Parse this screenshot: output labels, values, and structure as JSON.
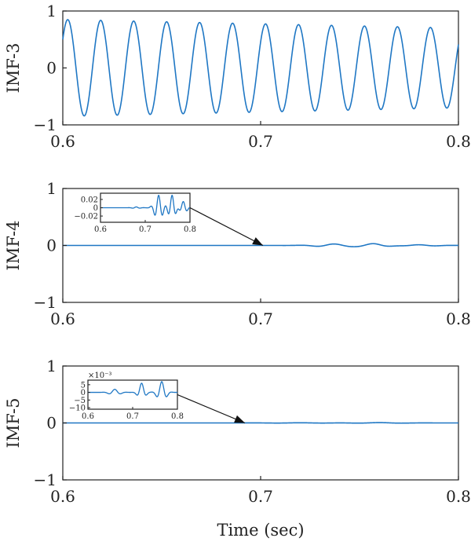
{
  "chart_data": [
    {
      "type": "line",
      "ylabel": "IMF-3",
      "xlim": [
        0.6,
        0.8
      ],
      "ylim": [
        -1,
        1
      ],
      "xticks": [
        "0.6",
        "0.7",
        "0.8"
      ],
      "yticks": [
        "−1",
        "0",
        "1"
      ],
      "series": [
        {
          "type": "oscillation",
          "color": "#1f77c4",
          "cycles": 12,
          "phase_cycles": 0.1,
          "amplitude_start": 0.85,
          "amplitude_end": 0.7,
          "x_start": 0.6,
          "x_end": 0.8
        }
      ]
    },
    {
      "type": "line",
      "ylabel": "IMF-4",
      "xlim": [
        0.6,
        0.8
      ],
      "ylim": [
        -1,
        1
      ],
      "xticks": [
        "0.6",
        "0.7",
        "0.8"
      ],
      "yticks": [
        "−1",
        "0",
        "1"
      ],
      "series": [
        {
          "type": "wavelets",
          "color": "#1f77c4",
          "x_start": 0.6,
          "x_end": 0.8,
          "bursts": [
            {
              "center": 0.737,
              "amp": 0.025,
              "width": 0.012,
              "freq": 55
            },
            {
              "center": 0.757,
              "amp": 0.03,
              "width": 0.01,
              "freq": 55
            },
            {
              "center": 0.78,
              "amp": 0.012,
              "width": 0.012,
              "freq": 55
            }
          ]
        }
      ],
      "inset": {
        "xlim": [
          0.6,
          0.8
        ],
        "ylim": [
          -0.035,
          0.035
        ],
        "xticks": [
          "0.6",
          "0.7",
          "0.8"
        ],
        "yticks": [
          "0.02",
          "0",
          "−0.02"
        ],
        "ytick_values": [
          0.02,
          0,
          -0.02
        ],
        "exponent_label": "",
        "bursts": [
          {
            "center": 0.68,
            "amp": 0.002,
            "width": 0.01,
            "freq": 55
          },
          {
            "center": 0.73,
            "amp": 0.03,
            "width": 0.012,
            "freq": 55
          },
          {
            "center": 0.76,
            "amp": 0.03,
            "width": 0.01,
            "freq": 55
          },
          {
            "center": 0.785,
            "amp": 0.015,
            "width": 0.01,
            "freq": 55
          }
        ]
      }
    },
    {
      "type": "line",
      "ylabel": "IMF-5",
      "xlabel": "Time (sec)",
      "xlim": [
        0.6,
        0.8
      ],
      "ylim": [
        -1,
        1
      ],
      "xticks": [
        "0.6",
        "0.7",
        "0.8"
      ],
      "yticks": [
        "−1",
        "0",
        "1"
      ],
      "series": [
        {
          "type": "wavelets",
          "color": "#1f77c4",
          "x_start": 0.6,
          "x_end": 0.8,
          "bursts": [
            {
              "center": 0.72,
              "amp": 0.003,
              "width": 0.02,
              "freq": 40
            },
            {
              "center": 0.76,
              "amp": 0.006,
              "width": 0.015,
              "freq": 40
            }
          ]
        }
      ],
      "inset": {
        "xlim": [
          0.6,
          0.8
        ],
        "ylim": [
          -11,
          8
        ],
        "xticks": [
          "0.6",
          "0.7",
          "0.8"
        ],
        "yticks": [
          "5",
          "0",
          "−5",
          "−10"
        ],
        "ytick_values": [
          5,
          0,
          -5,
          -10
        ],
        "exponent_label": "×10⁻³",
        "bursts": [
          {
            "center": 0.66,
            "amp": 2,
            "width": 0.015,
            "freq": 35
          },
          {
            "center": 0.72,
            "amp": 6,
            "width": 0.01,
            "freq": 40
          },
          {
            "center": 0.765,
            "amp": 7,
            "width": 0.012,
            "freq": 40
          }
        ]
      }
    }
  ]
}
